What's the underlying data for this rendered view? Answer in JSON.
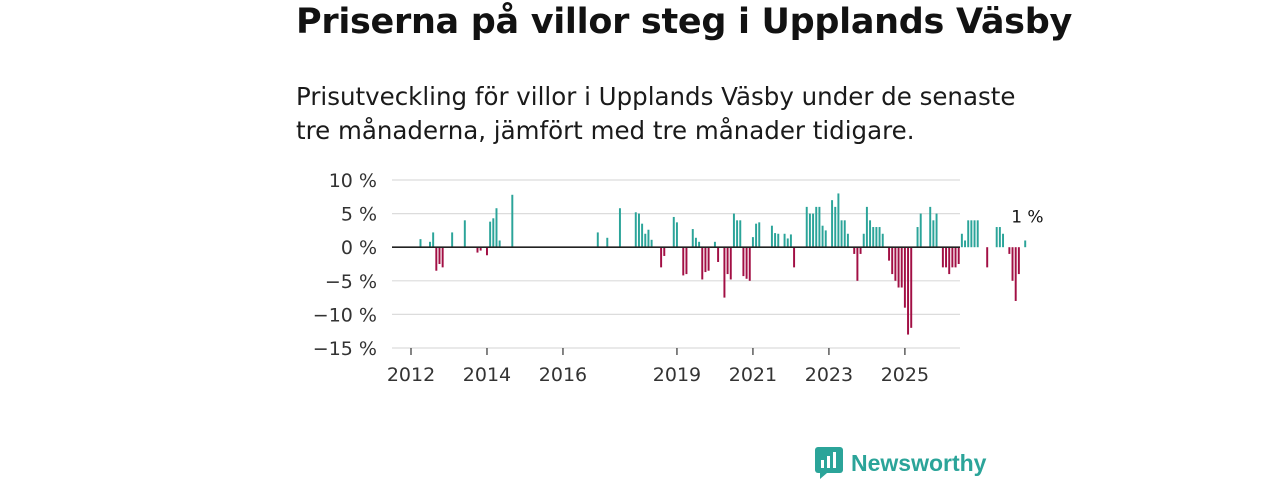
{
  "header": {
    "title": "Priserna på villor steg i Upplands Väsby",
    "subtitle": "Prisutveckling för villor i Upplands Väsby under de senaste tre månaderna, jämfört med tre månader tidigare."
  },
  "brand": {
    "name": "Newsworthy"
  },
  "colors": {
    "positive": "#2ba499",
    "negative": "#a20f44",
    "grid": "#dcdcdc",
    "zero_line": "#222222",
    "brand": "#2ba499"
  },
  "chart_data": {
    "type": "bar",
    "title": "Priserna på villor steg i Upplands Väsby",
    "subtitle": "Prisutveckling för villor i Upplands Väsby under de senaste tre månaderna, jämfört med tre månader tidigare.",
    "xlabel": "",
    "ylabel": "",
    "ylim": [
      -15,
      10
    ],
    "yticks": [
      10,
      5,
      0,
      -5,
      -10,
      -15
    ],
    "ytick_labels": [
      "10 %",
      "5 %",
      "0 %",
      "−5 %",
      "−10 %",
      "−15 %"
    ],
    "x_start": 2011.75,
    "bar_step": 0.08333,
    "xlim": [
      2011.5,
      2026.45
    ],
    "xticks": [
      2012,
      2014,
      2016,
      2019,
      2021,
      2023,
      2025
    ],
    "xtick_labels": [
      "2012",
      "2014",
      "2016",
      "2019",
      "2021",
      "2023",
      "2025"
    ],
    "last_value_label": "1 %",
    "values": [
      0,
      0,
      0,
      0,
      0,
      0,
      1.2,
      0,
      0,
      0.8,
      2.2,
      -3.5,
      -2.5,
      -3,
      0,
      0,
      2.2,
      0,
      0,
      0,
      4,
      0,
      0,
      0,
      -0.8,
      -0.5,
      0,
      -1.2,
      3.8,
      4.3,
      5.8,
      1,
      0,
      0,
      0,
      7.8,
      0,
      0,
      0,
      0,
      0,
      0,
      0,
      0,
      0,
      0,
      0,
      0,
      0,
      0,
      0,
      0,
      0,
      0,
      0,
      0,
      0,
      0,
      0,
      0,
      0,
      0,
      2.2,
      0,
      0,
      1.4,
      0,
      0,
      0,
      5.8,
      0,
      0,
      0,
      0,
      5.2,
      5,
      3.5,
      2,
      2.6,
      1.1,
      0,
      0,
      -3,
      -1.3,
      0,
      0,
      4.5,
      3.7,
      0,
      -4.2,
      -4,
      0,
      2.7,
      1.4,
      0.8,
      -4.8,
      -3.7,
      -3.5,
      0,
      0.8,
      -2.2,
      0,
      -7.5,
      -4,
      -4.8,
      5,
      4,
      4,
      -4.3,
      -4.7,
      -5,
      1.5,
      3.5,
      3.7,
      0,
      0,
      0,
      3.2,
      2.1,
      2,
      0,
      2,
      1.3,
      1.9,
      -3,
      0,
      0,
      0,
      6,
      5,
      5,
      6,
      6,
      3.2,
      2.5,
      0,
      7,
      6,
      8,
      4,
      4,
      2,
      0,
      -1,
      -5,
      -1,
      2,
      6,
      4,
      3,
      3,
      3,
      2,
      0,
      -2,
      -4,
      -5,
      -6,
      -6,
      -9,
      -13,
      -12,
      0,
      3,
      5,
      0,
      0,
      6,
      4,
      5,
      0,
      -3,
      -3,
      -4,
      -3,
      -3,
      -2.5,
      2,
      1,
      4,
      4,
      4,
      4,
      0,
      0,
      -3,
      0,
      0,
      3,
      3,
      2,
      0,
      -1,
      -5,
      -8,
      -4,
      0,
      1
    ]
  }
}
